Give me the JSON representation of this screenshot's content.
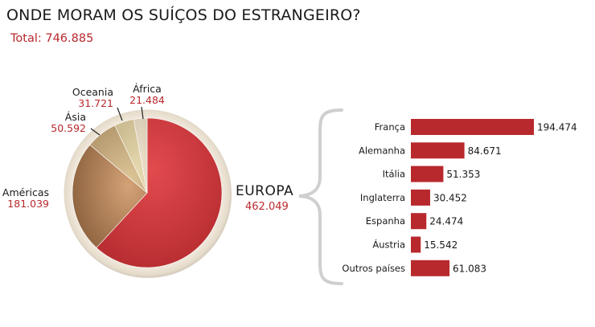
{
  "title": "ONDE MORAM OS SUÍÇOS DO ESTRANGEIRO?",
  "total_label": "Total: 746.885",
  "colors": {
    "europe_red": "#c0363a",
    "bar_red": "#b8292d",
    "americas_brown": "#b08158",
    "asia_tan": "#cdb58a",
    "oceania_beige": "#ddd0a5",
    "africa_cream": "#e8dcc6"
  },
  "chart_data": [
    {
      "type": "pie",
      "slices": [
        {
          "name": "EUROPA",
          "value": 462049,
          "label": "462.049"
        },
        {
          "name": "Américas",
          "value": 181039,
          "label": "181.039"
        },
        {
          "name": "Ásia",
          "value": 50592,
          "label": "50.592"
        },
        {
          "name": "Oceania",
          "value": 31721,
          "label": "31.721"
        },
        {
          "name": "África",
          "value": 21484,
          "label": "21.484"
        }
      ]
    },
    {
      "type": "bar",
      "orientation": "horizontal",
      "categories": [
        "França",
        "Alemanha",
        "Itália",
        "Inglaterra",
        "Espanha",
        "Áustria",
        "Outros países"
      ],
      "values": [
        194474,
        84671,
        51353,
        30452,
        24474,
        15542,
        61083
      ],
      "labels": [
        "194.474",
        "84.671",
        "51.353",
        "30.452",
        "24.474",
        "15.542",
        "61.083"
      ]
    }
  ]
}
